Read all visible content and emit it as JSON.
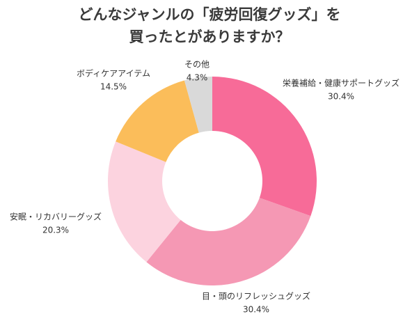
{
  "chart_data": {
    "type": "donut",
    "title": [
      "どんなジャンルの「疲労回復グッズ」を",
      "買ったとがありますか？"
    ],
    "categories": [
      "栄養補給・健康サポートグッズ",
      "目・頭のリフレッシュグッズ",
      "安眠・リカバリーグッズ",
      "ボディケアアイテム",
      "その他"
    ],
    "values": [
      30.4,
      30.4,
      20.3,
      14.5,
      4.3
    ],
    "value_labels": [
      "30.4%",
      "30.4%",
      "20.3%",
      "14.5%",
      "4.3%"
    ],
    "colors": [
      "#f76b98",
      "#f598b4",
      "#fcd3df",
      "#fbbd5a",
      "#d9d9d9"
    ]
  }
}
